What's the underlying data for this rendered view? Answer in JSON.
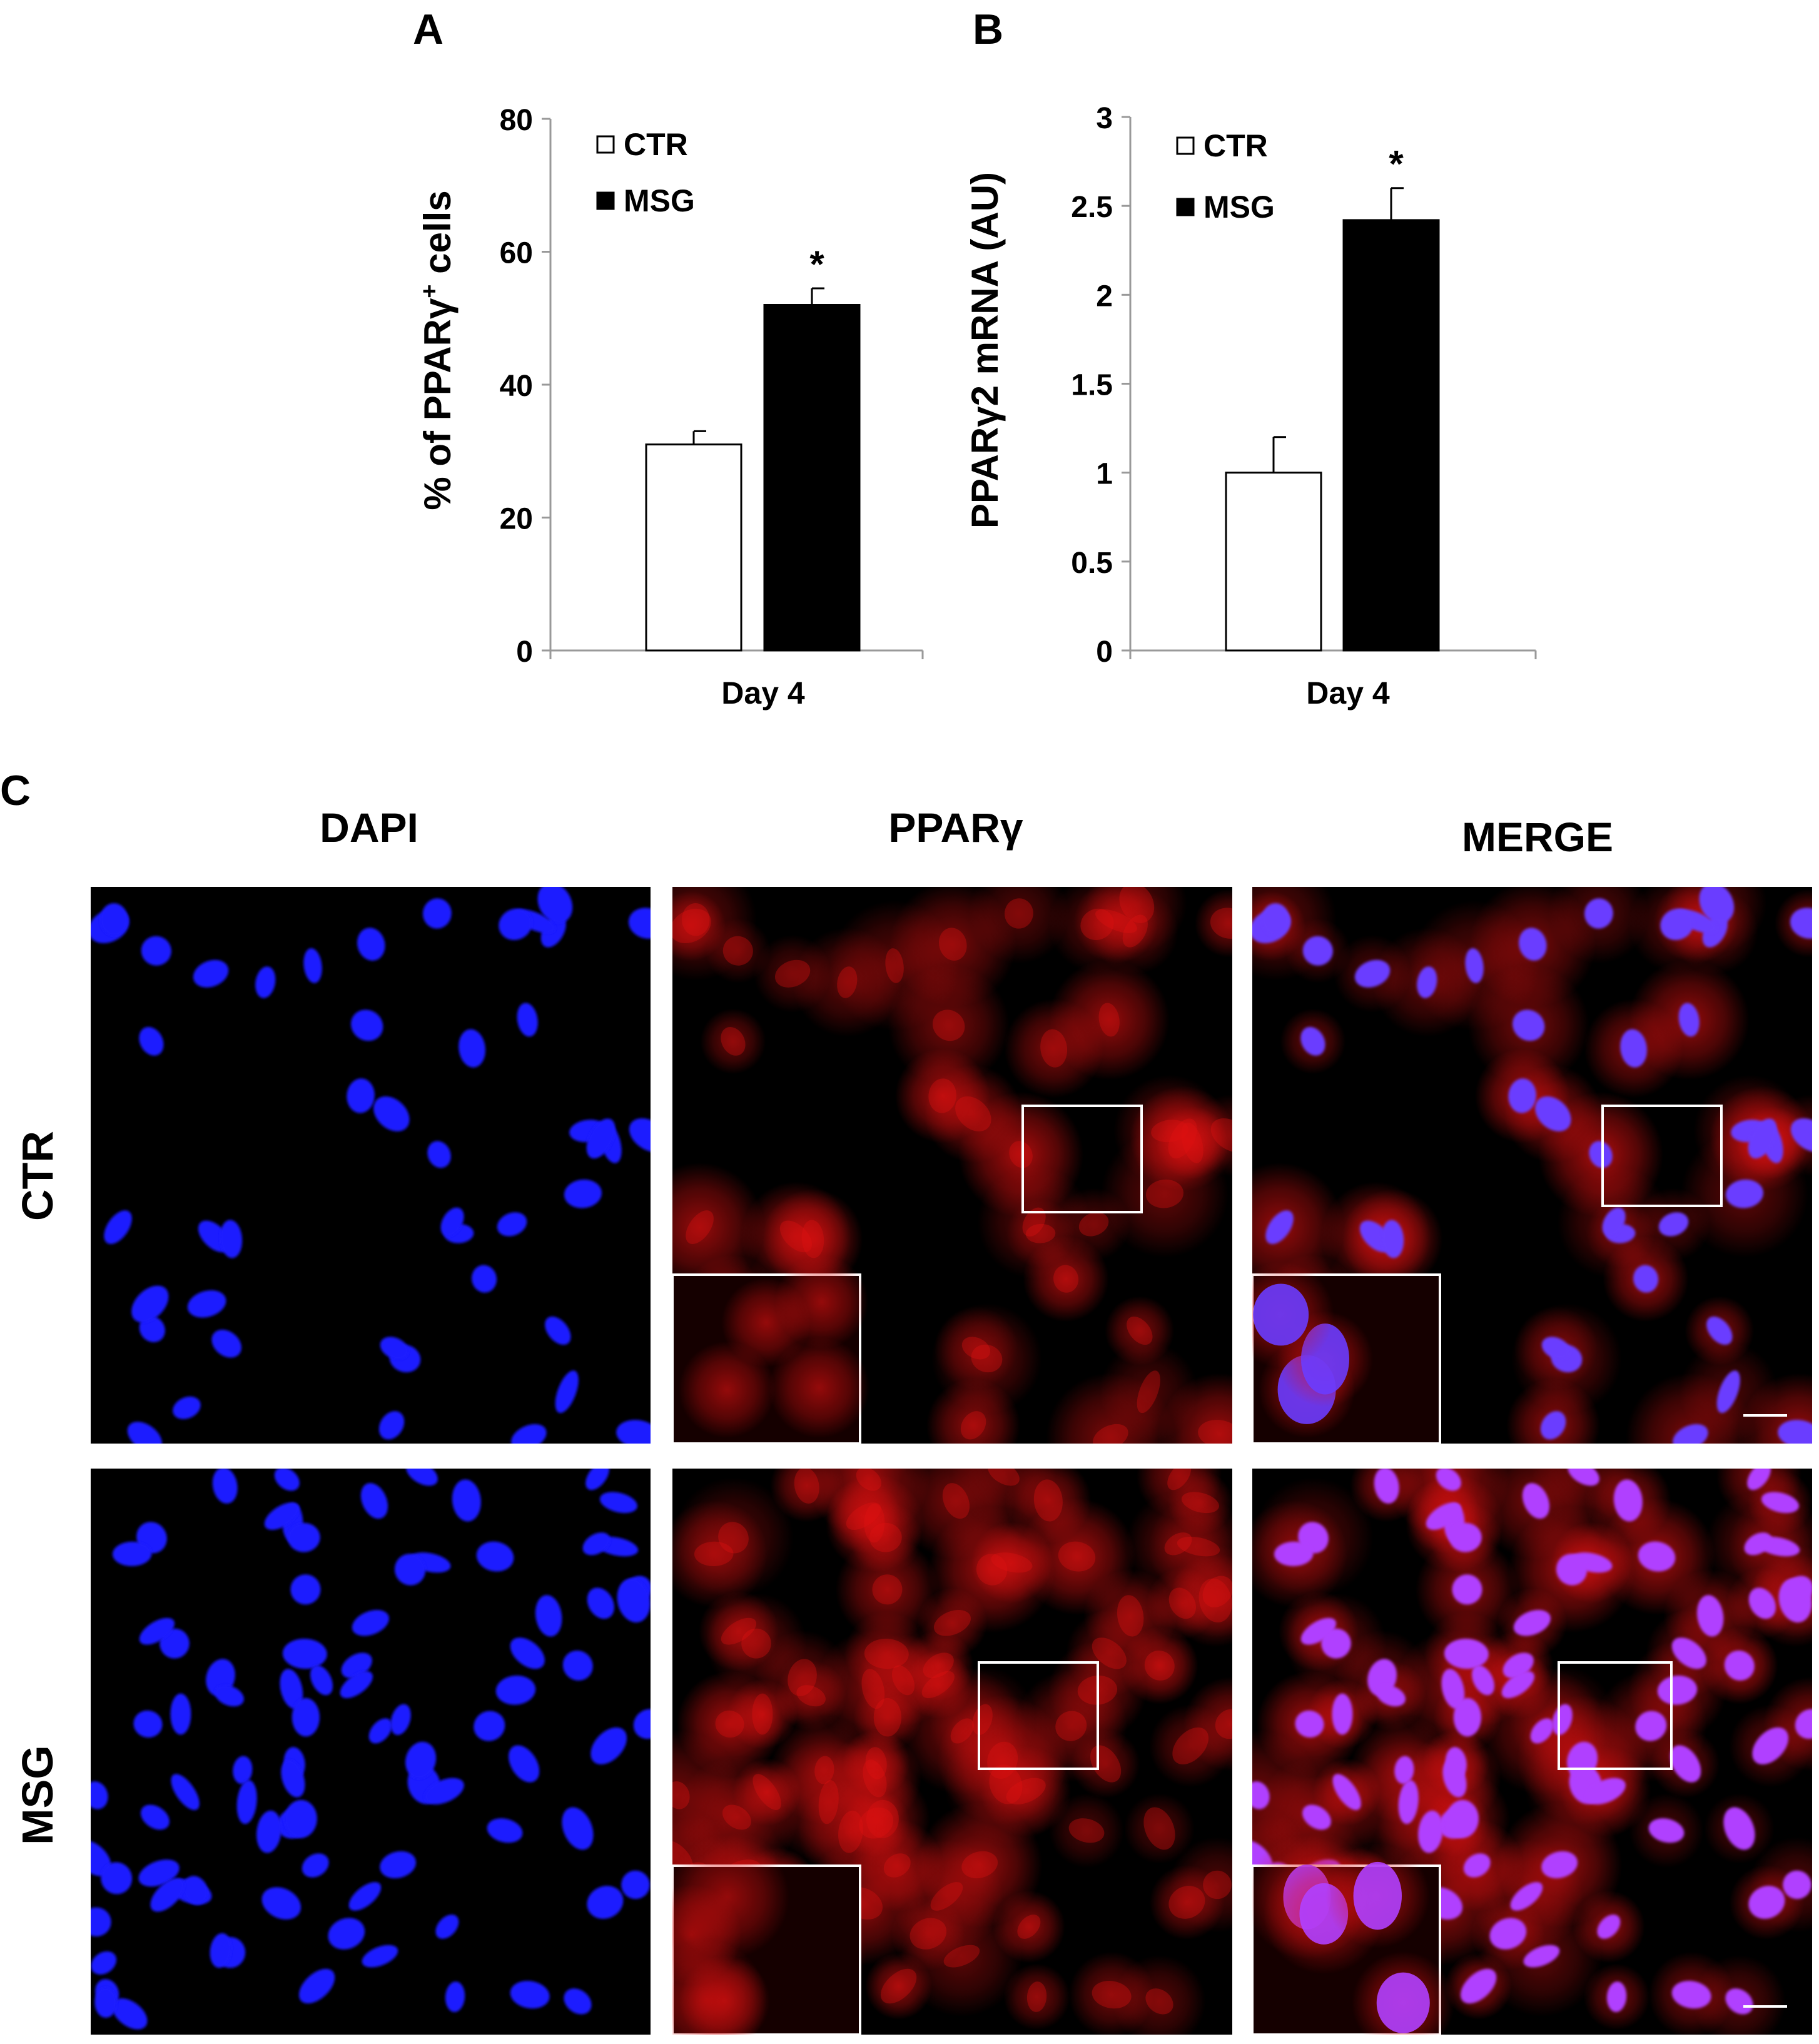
{
  "panel_labels": {
    "a": "A",
    "b": "B",
    "c": "C"
  },
  "chart_data": [
    {
      "type": "bar",
      "panel": "A",
      "categories": [
        "Day 4"
      ],
      "series": [
        {
          "name": "CTR",
          "values": [
            31
          ],
          "errors": [
            2
          ],
          "color": "#ffffff"
        },
        {
          "name": "MSG",
          "values": [
            52
          ],
          "errors": [
            2.5
          ],
          "color": "#000000"
        }
      ],
      "ylabel_main": "% of PPARγ",
      "ylabel_sup": "+",
      "ylabel_tail": " cells",
      "xlabel": "Day 4",
      "ylim": [
        0,
        80
      ],
      "yticks": [
        0,
        20,
        40,
        60,
        80
      ],
      "ytick_labels": [
        "0",
        "20",
        "40",
        "60",
        "80"
      ],
      "legend": [
        "CTR",
        "MSG"
      ],
      "legend_placement": "top-left",
      "annotations": [
        "*"
      ],
      "grid": false
    },
    {
      "type": "bar",
      "panel": "B",
      "categories": [
        "Day 4"
      ],
      "series": [
        {
          "name": "CTR",
          "values": [
            1.0
          ],
          "errors": [
            0.2
          ],
          "color": "#ffffff"
        },
        {
          "name": "MSG",
          "values": [
            2.42
          ],
          "errors": [
            0.18
          ],
          "color": "#000000"
        }
      ],
      "ylabel_main": "PPARγ2 mRNA (AU)",
      "xlabel": "Day 4",
      "ylim": [
        0,
        3
      ],
      "yticks": [
        0,
        0.5,
        1,
        1.5,
        2,
        2.5,
        3
      ],
      "ytick_labels": [
        "0",
        "0.5",
        "1",
        "1.5",
        "2",
        "2.5",
        "3"
      ],
      "legend": [
        "CTR",
        "MSG"
      ],
      "legend_placement": "top-left",
      "annotations": [
        "*"
      ],
      "grid": false
    }
  ],
  "micrographs": {
    "columns": [
      "DAPI",
      "PPARγ",
      "MERGE"
    ],
    "rows": [
      "CTR",
      "MSG"
    ],
    "colors": {
      "dapi": "#1a1aff",
      "ppar": "#e01010",
      "merge_nucleus": "#6a3cff",
      "merge_msg_nucleus": "#b040ff"
    }
  }
}
